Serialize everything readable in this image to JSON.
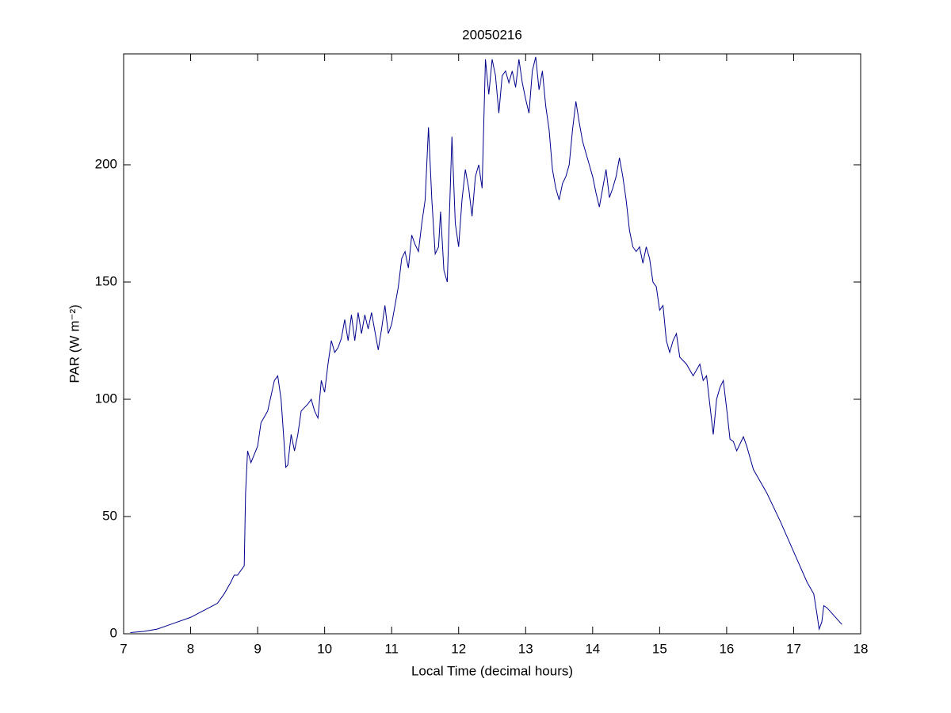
{
  "chart_data": {
    "type": "line",
    "title": "20050216",
    "xlabel": "Local Time (decimal hours)",
    "ylabel": "PAR (W m⁻²)",
    "x": [
      7.1,
      7.3,
      7.5,
      7.7,
      8.0,
      8.2,
      8.4,
      8.5,
      8.6,
      8.65,
      8.7,
      8.8,
      8.82,
      8.85,
      8.9,
      9.0,
      9.05,
      9.15,
      9.25,
      9.3,
      9.35,
      9.42,
      9.45,
      9.5,
      9.55,
      9.6,
      9.65,
      9.75,
      9.8,
      9.85,
      9.9,
      9.95,
      10.0,
      10.05,
      10.1,
      10.15,
      10.2,
      10.25,
      10.3,
      10.35,
      10.4,
      10.45,
      10.5,
      10.55,
      10.6,
      10.65,
      10.7,
      10.8,
      10.85,
      10.9,
      10.95,
      11.0,
      11.1,
      11.15,
      11.2,
      11.25,
      11.3,
      11.35,
      11.4,
      11.45,
      11.5,
      11.55,
      11.6,
      11.65,
      11.7,
      11.73,
      11.78,
      11.83,
      11.9,
      11.95,
      12.0,
      12.05,
      12.1,
      12.15,
      12.2,
      12.25,
      12.3,
      12.35,
      12.4,
      12.45,
      12.5,
      12.55,
      12.6,
      12.65,
      12.7,
      12.75,
      12.8,
      12.85,
      12.9,
      12.95,
      13.0,
      13.05,
      13.1,
      13.15,
      13.2,
      13.25,
      13.3,
      13.35,
      13.4,
      13.45,
      13.5,
      13.55,
      13.6,
      13.65,
      13.7,
      13.75,
      13.8,
      13.85,
      13.9,
      13.95,
      14.0,
      14.05,
      14.1,
      14.15,
      14.2,
      14.25,
      14.3,
      14.35,
      14.4,
      14.45,
      14.5,
      14.55,
      14.6,
      14.65,
      14.7,
      14.75,
      14.8,
      14.85,
      14.9,
      14.95,
      15.0,
      15.05,
      15.1,
      15.15,
      15.2,
      15.25,
      15.3,
      15.4,
      15.5,
      15.6,
      15.65,
      15.7,
      15.8,
      15.85,
      15.9,
      15.95,
      16.0,
      16.05,
      16.1,
      16.15,
      16.25,
      16.3,
      16.4,
      16.6,
      16.8,
      17.0,
      17.2,
      17.3,
      17.35,
      17.38,
      17.42,
      17.45,
      17.5,
      17.72
    ],
    "series": [
      {
        "name": "PAR",
        "color": "#00008b",
        "values": [
          0.5,
          1,
          2,
          4,
          7,
          10,
          13,
          17,
          22,
          25,
          25,
          29,
          60,
          78,
          73,
          80,
          90,
          95,
          108,
          110,
          100,
          71,
          72,
          85,
          78,
          85,
          95,
          98,
          100,
          95,
          92,
          108,
          103,
          115,
          125,
          120,
          122,
          126,
          134,
          125,
          136,
          125,
          137,
          128,
          136,
          130,
          137,
          121,
          130,
          140,
          128,
          132,
          148,
          160,
          163,
          156,
          170,
          166,
          163,
          175,
          185,
          216,
          185,
          162,
          165,
          180,
          155,
          150,
          212,
          175,
          165,
          185,
          198,
          190,
          178,
          195,
          200,
          190,
          245,
          230,
          245,
          238,
          222,
          238,
          240,
          235,
          240,
          233,
          245,
          235,
          228,
          222,
          240,
          246,
          232,
          240,
          225,
          215,
          198,
          190,
          185,
          192,
          195,
          200,
          215,
          227,
          218,
          210,
          205,
          200,
          195,
          188,
          182,
          190,
          198,
          186,
          190,
          195,
          203,
          195,
          185,
          172,
          165,
          163,
          165,
          158,
          165,
          160,
          150,
          148,
          138,
          140,
          125,
          120,
          125,
          128,
          118,
          115,
          110,
          115,
          108,
          110,
          85,
          100,
          105,
          108,
          96,
          83,
          82,
          78,
          84,
          80,
          70,
          60,
          48,
          35,
          22,
          17,
          8,
          2,
          5,
          12,
          11,
          4
        ]
      }
    ],
    "xlim": [
      7,
      18
    ],
    "ylim": [
      0,
      247.3
    ],
    "xticks": [
      7,
      8,
      9,
      10,
      11,
      12,
      13,
      14,
      15,
      16,
      17,
      18
    ],
    "yticks": [
      0,
      50,
      100,
      150,
      200
    ]
  }
}
